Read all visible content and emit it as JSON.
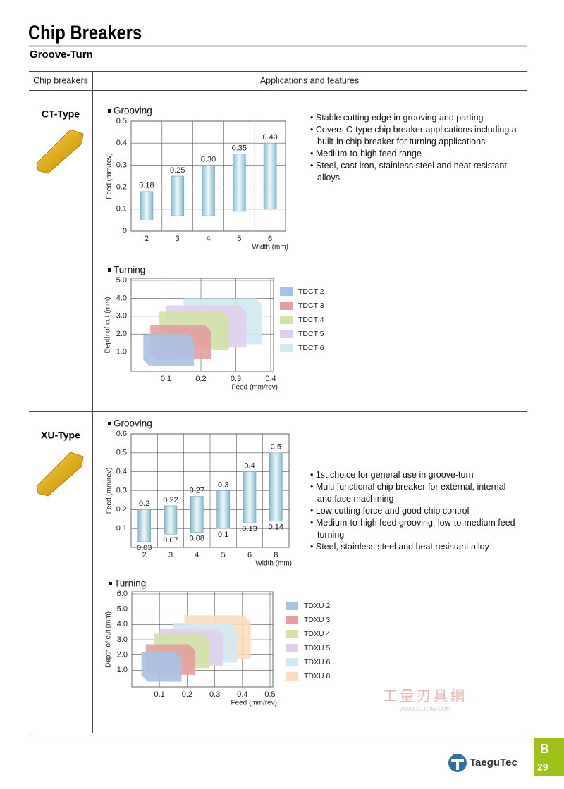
{
  "header": {
    "title": "Chip Breakers",
    "subtitle": "Groove-Turn"
  },
  "table": {
    "columns": [
      "Chip breakers",
      "Applications and features"
    ]
  },
  "sections": [
    {
      "name": "CT-Type",
      "grooving": {
        "type": "range_bar",
        "heading": "Grooving",
        "categories": [
          2,
          3,
          4,
          5,
          6
        ],
        "xlabel": "Width (mm)",
        "ylabel": "Feed (mm/rev)",
        "low": [
          0.05,
          0.07,
          0.07,
          0.09,
          0.1
        ],
        "high": [
          0.18,
          0.25,
          0.3,
          0.35,
          0.4
        ],
        "value_labels": [
          "0.18",
          "0.25",
          "0.30",
          "0.35",
          "0.40"
        ],
        "ylim": [
          0,
          0.5
        ],
        "yticks": [
          0,
          0.1,
          0.2,
          0.3,
          0.4,
          0.5
        ],
        "grid": true
      },
      "turning": {
        "type": "region",
        "heading": "Turning",
        "xlabel": "Feed (mm/rev)",
        "ylabel": "Depth of cut (mm)",
        "xlim": [
          0,
          0.4
        ],
        "ylim": [
          0,
          5
        ],
        "xticks": [
          0.1,
          0.2,
          0.3,
          0.4
        ],
        "yticks": [
          {
            "value": 1,
            "label": "1.0"
          },
          {
            "value": 2,
            "label": "2.0"
          },
          {
            "value": 3,
            "label": "3.0"
          },
          {
            "value": 4,
            "label": "4.0"
          },
          {
            "value": 5,
            "label": "5.0"
          }
        ],
        "grid": true,
        "series": [
          {
            "name": "TDCT 2",
            "color": "#a9c1e4",
            "feed": [
              0.035,
              0.18
            ],
            "depth": [
              0.2,
              2.0
            ]
          },
          {
            "name": "TDCT 3",
            "color": "#e3a0a0",
            "feed": [
              0.055,
              0.23
            ],
            "depth": [
              0.6,
              2.5
            ]
          },
          {
            "name": "TDCT 4",
            "color": "#d4e3a5",
            "feed": [
              0.08,
              0.28
            ],
            "depth": [
              1.1,
              3.25
            ]
          },
          {
            "name": "TDCT 5",
            "color": "#e0d0ec",
            "feed": [
              0.1,
              0.33
            ],
            "depth": [
              1.25,
              3.6
            ]
          },
          {
            "name": "TDCT 6",
            "color": "#cfe9f2",
            "feed": [
              0.15,
              0.375
            ],
            "depth": [
              1.4,
              4.0
            ]
          }
        ]
      },
      "features": [
        "Stable cutting edge in grooving and parting",
        "Covers C-type chip breaker applications including a built-in chip breaker for turning applications",
        "Medium-to-high feed range",
        "Steel, cast iron, stainless steel and heat resistant alloys"
      ]
    },
    {
      "name": "XU-Type",
      "grooving": {
        "type": "range_bar",
        "heading": "Grooving",
        "categories": [
          2,
          3,
          4,
          5,
          6,
          8
        ],
        "xlabel": "Width (mm)",
        "ylabel": "Feed (mm/rev)",
        "low": [
          0.03,
          0.07,
          0.08,
          0.1,
          0.13,
          0.14
        ],
        "high": [
          0.2,
          0.22,
          0.27,
          0.3,
          0.4,
          0.5
        ],
        "low_labels_shown": true,
        "ylim": [
          0,
          0.6
        ],
        "yticks": [
          0.1,
          0.2,
          0.3,
          0.4,
          0.5,
          0.6
        ],
        "grid": true
      },
      "turning": {
        "type": "region",
        "heading": "Turning",
        "xlabel": "Feed (mm/rev)",
        "ylabel": "Depth of cut (mm)",
        "xlim": [
          0,
          0.5
        ],
        "ylim": [
          0,
          6
        ],
        "xticks": [
          0.1,
          0.2,
          0.3,
          0.4,
          0.5
        ],
        "yticks": [
          {
            "value": 1,
            "label": "1.0"
          },
          {
            "value": 2,
            "label": "2.0"
          },
          {
            "value": 3,
            "label": "3.0"
          },
          {
            "value": 4,
            "label": "4.0"
          },
          {
            "value": 5,
            "label": "5.0"
          },
          {
            "value": 6,
            "label": "6.0"
          }
        ],
        "grid": true,
        "series": [
          {
            "name": "TDXU 2",
            "color": "#a9c1e4",
            "feed": [
              0.035,
              0.18
            ],
            "depth": [
              0.25,
              2.2
            ]
          },
          {
            "name": "TDXU 3",
            "color": "#e3a0a0",
            "feed": [
              0.05,
              0.23
            ],
            "depth": [
              0.7,
              2.7
            ]
          },
          {
            "name": "TDXU 4",
            "color": "#d4e3a5",
            "feed": [
              0.08,
              0.28
            ],
            "depth": [
              1.15,
              3.4
            ]
          },
          {
            "name": "TDXU 5",
            "color": "#e0d0ec",
            "feed": [
              0.1,
              0.33
            ],
            "depth": [
              1.3,
              3.7
            ]
          },
          {
            "name": "TDXU 6",
            "color": "#cfe9f2",
            "feed": [
              0.15,
              0.38
            ],
            "depth": [
              1.5,
              4.1
            ]
          },
          {
            "name": "TDXU 8",
            "color": "#fbdcbc",
            "feed": [
              0.19,
              0.43
            ],
            "depth": [
              1.75,
              4.6
            ]
          }
        ]
      },
      "features": [
        "1st choice for general use in groove-turn",
        "Multi functional chip breaker for external, internal and face machining",
        "Low cutting force and good chip control",
        "Medium-to-high feed grooving, low-to-medium feed turning",
        "Steel, stainless steel and heat resistant alloy"
      ]
    }
  ],
  "footer": {
    "tab_letter": "B",
    "page": "29",
    "brand": "TaeguTec"
  },
  "watermark": {
    "text": "工量刃具網",
    "url": "WWW.GLRJW.COM"
  }
}
